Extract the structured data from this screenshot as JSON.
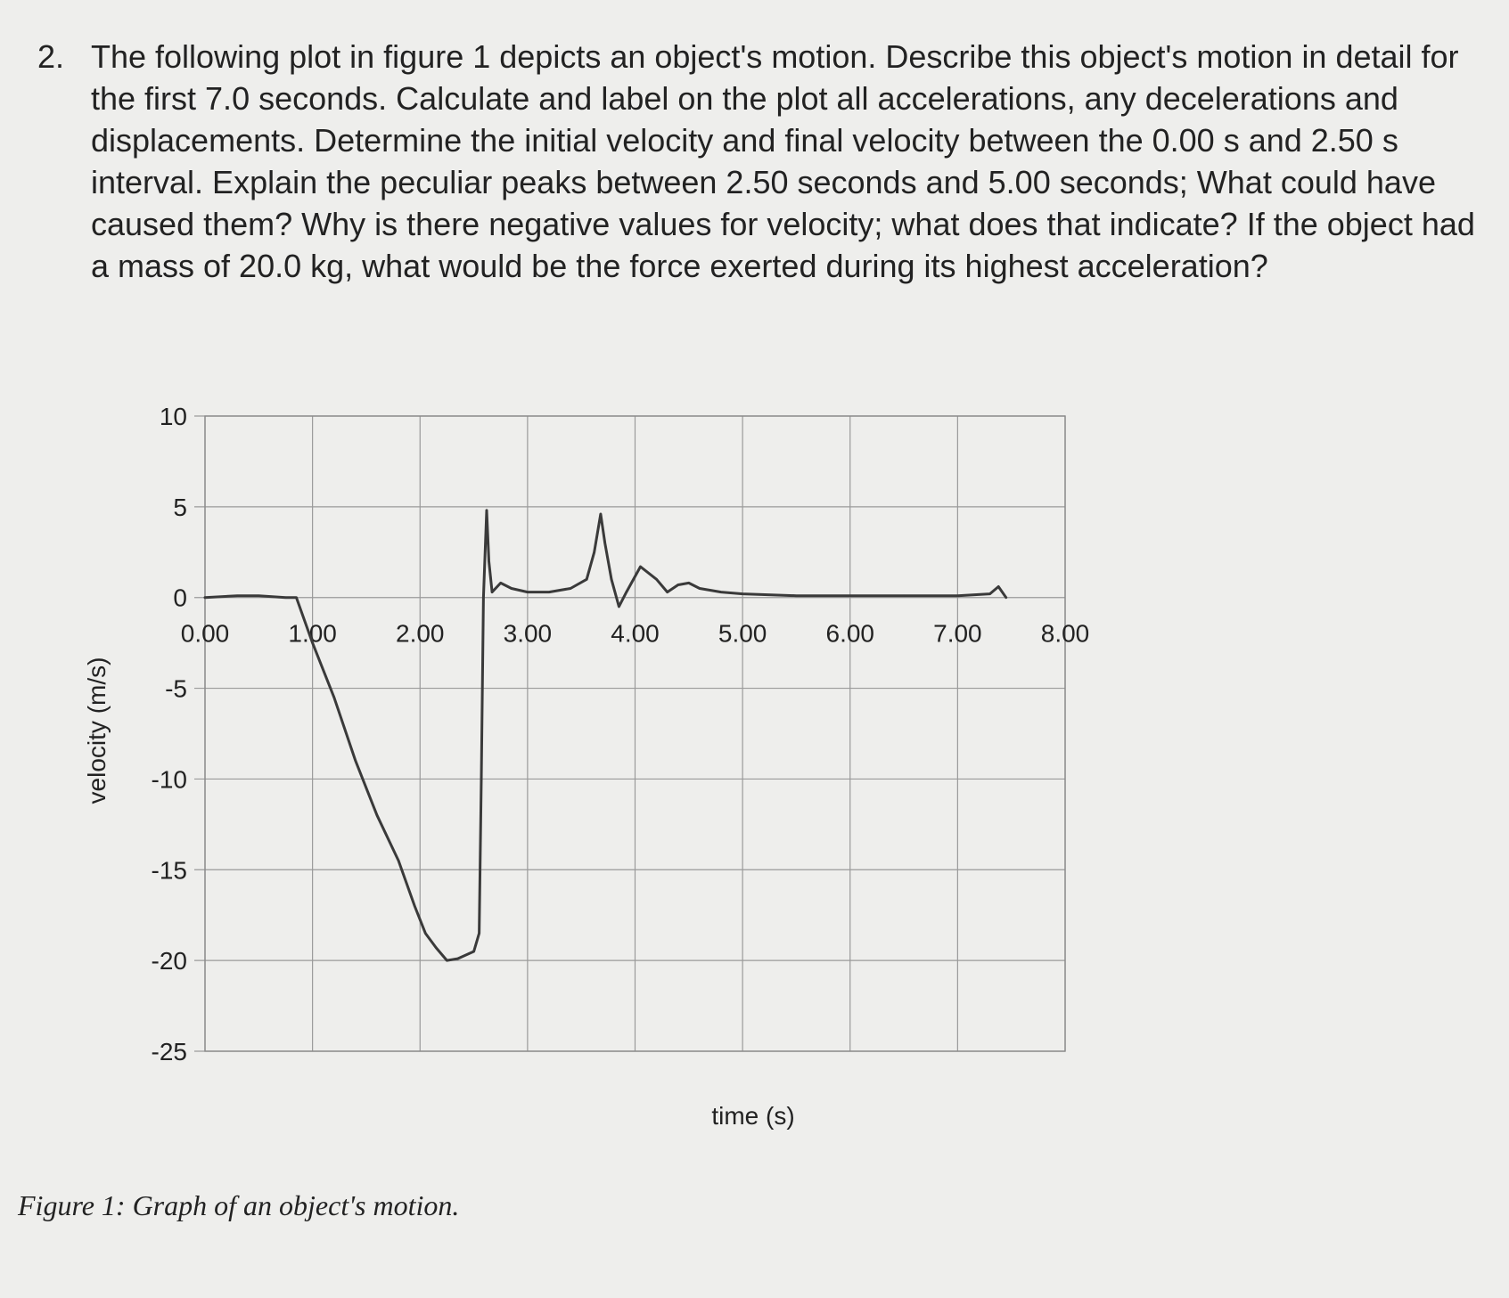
{
  "question": {
    "number": "2.",
    "text": "The following plot in figure 1 depicts an object's motion. Describe this object's motion in detail for the first 7.0 seconds. Calculate and label on the plot all accelerations, any decelerations and displacements. Determine the initial velocity and final velocity between the 0.00 s and 2.50 s interval. Explain the peculiar peaks between 2.50 seconds and 5.00 seconds; What could have caused them? Why is there negative values for velocity; what does that indicate? If the object had a mass of 20.0 kg, what would be the force exerted during its highest acceleration?"
  },
  "chart_data": {
    "type": "line",
    "xlabel": "time (s)",
    "ylabel": "velocity (m/s)",
    "xlim": [
      0,
      8
    ],
    "ylim": [
      -25,
      10
    ],
    "x_ticks": [
      "0.00",
      "1.00",
      "2.00",
      "3.00",
      "4.00",
      "5.00",
      "6.00",
      "7.00",
      "8.00"
    ],
    "x_tick_values": [
      0,
      1,
      2,
      3,
      4,
      5,
      6,
      7,
      8
    ],
    "y_ticks": [
      "10",
      "5",
      "0",
      "-5",
      "-10",
      "-15",
      "-20",
      "-25"
    ],
    "y_tick_values": [
      10,
      5,
      0,
      -5,
      -10,
      -15,
      -20,
      -25
    ],
    "grid": true,
    "legend": "none",
    "line_color": "#3a3a3a",
    "series": [
      {
        "values": [
          [
            0.0,
            0.0
          ],
          [
            0.3,
            0.1
          ],
          [
            0.5,
            0.1
          ],
          [
            0.75,
            0.0
          ],
          [
            0.85,
            0.0
          ],
          [
            1.0,
            -2.5
          ],
          [
            1.2,
            -5.5
          ],
          [
            1.4,
            -9.0
          ],
          [
            1.6,
            -12.0
          ],
          [
            1.8,
            -14.5
          ],
          [
            1.95,
            -17.0
          ],
          [
            2.05,
            -18.5
          ],
          [
            2.15,
            -19.3
          ],
          [
            2.25,
            -20.0
          ],
          [
            2.35,
            -19.9
          ],
          [
            2.5,
            -19.5
          ],
          [
            2.55,
            -18.5
          ],
          [
            2.57,
            -10.0
          ],
          [
            2.59,
            0.0
          ],
          [
            2.62,
            4.8
          ],
          [
            2.64,
            2.0
          ],
          [
            2.67,
            0.3
          ],
          [
            2.75,
            0.8
          ],
          [
            2.85,
            0.5
          ],
          [
            3.0,
            0.3
          ],
          [
            3.2,
            0.3
          ],
          [
            3.4,
            0.5
          ],
          [
            3.55,
            1.0
          ],
          [
            3.62,
            2.5
          ],
          [
            3.68,
            4.6
          ],
          [
            3.72,
            3.0
          ],
          [
            3.78,
            1.0
          ],
          [
            3.85,
            -0.5
          ],
          [
            3.92,
            0.3
          ],
          [
            4.05,
            1.7
          ],
          [
            4.2,
            1.0
          ],
          [
            4.3,
            0.3
          ],
          [
            4.4,
            0.7
          ],
          [
            4.5,
            0.8
          ],
          [
            4.6,
            0.5
          ],
          [
            4.8,
            0.3
          ],
          [
            5.0,
            0.2
          ],
          [
            5.5,
            0.1
          ],
          [
            6.0,
            0.1
          ],
          [
            6.5,
            0.1
          ],
          [
            7.0,
            0.1
          ],
          [
            7.3,
            0.2
          ],
          [
            7.38,
            0.6
          ],
          [
            7.45,
            0.0
          ]
        ]
      }
    ]
  },
  "caption": "Figure 1: Graph of an object's motion."
}
